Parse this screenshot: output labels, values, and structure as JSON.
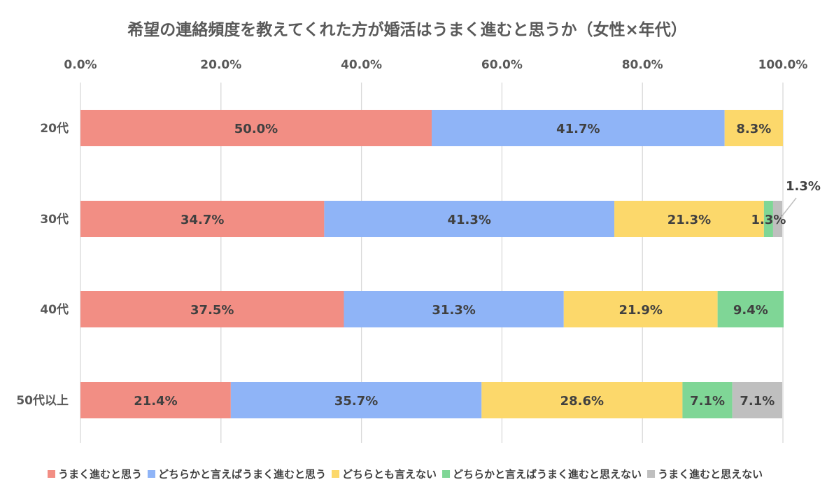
{
  "chart_data": {
    "type": "bar",
    "orientation": "horizontal",
    "stacked": true,
    "title": "希望の連絡頻度を教えてくれた方が婚活はうまく進むと思うか（女性×年代）",
    "categories": [
      "20代",
      "30代",
      "40代",
      "50代以上"
    ],
    "xlim": [
      0,
      100
    ],
    "x_ticks": [
      "0.0%",
      "20.0%",
      "40.0%",
      "60.0%",
      "80.0%",
      "100.0%"
    ],
    "x_tick_values": [
      0,
      20,
      40,
      60,
      80,
      100
    ],
    "grid": true,
    "legend_position": "bottom",
    "series": [
      {
        "name": "うまく進むと思う",
        "color": "#F28E84",
        "values": [
          50.0,
          34.7,
          37.5,
          21.4
        ],
        "labels": [
          "50.0%",
          "34.7%",
          "37.5%",
          "21.4%"
        ]
      },
      {
        "name": "どちらかと言えばうまく進むと思う",
        "color": "#8FB4F7",
        "values": [
          41.7,
          41.3,
          31.3,
          35.7
        ],
        "labels": [
          "41.7%",
          "41.3%",
          "31.3%",
          "35.7%"
        ]
      },
      {
        "name": "どちらとも言えない",
        "color": "#FCD86B",
        "values": [
          8.3,
          21.3,
          21.9,
          28.6
        ],
        "labels": [
          "8.3%",
          "21.3%",
          "21.9%",
          "28.6%"
        ]
      },
      {
        "name": "どちらかと言えばうまく進むと思えない",
        "color": "#7FD696",
        "values": [
          0,
          1.3,
          9.4,
          7.1
        ],
        "labels": [
          "",
          "1.3%",
          "9.4%",
          "7.1%"
        ]
      },
      {
        "name": "うまく進むと思えない",
        "color": "#BFBFBF",
        "values": [
          0,
          1.3,
          0,
          7.1
        ],
        "labels": [
          "",
          "1.3%",
          "",
          "7.1%"
        ]
      }
    ]
  }
}
